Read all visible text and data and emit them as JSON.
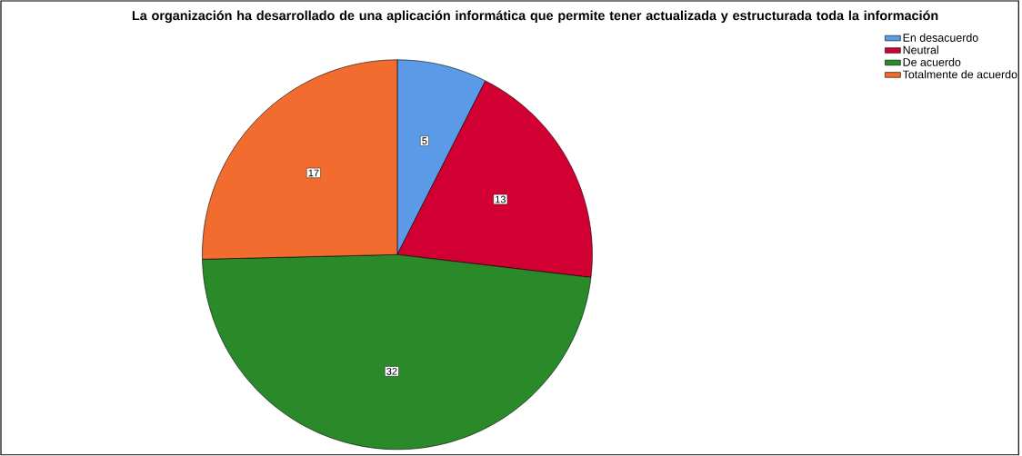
{
  "chart_data": {
    "type": "pie",
    "title": "La organización ha desarrollado de una aplicación informática que permite tener actualizada y estructurada toda la información",
    "categories": [
      "En desacuerdo",
      "Neutral",
      "De acuerdo",
      "Totalmente de acuerdo"
    ],
    "values": [
      5,
      13,
      32,
      17
    ],
    "colors": [
      "#5b9ae6",
      "#d20032",
      "#2a8a2a",
      "#f36c2f"
    ],
    "data_labels": true,
    "legend": "top right"
  }
}
